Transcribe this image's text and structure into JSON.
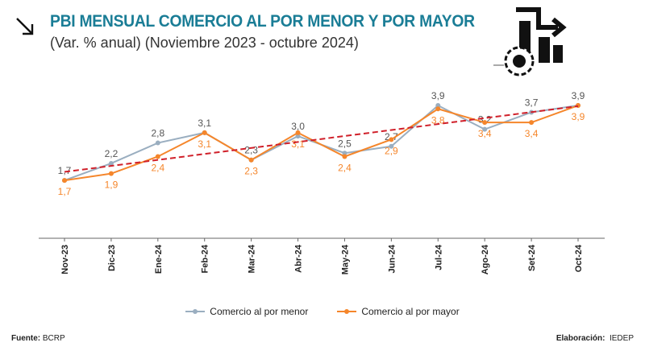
{
  "header": {
    "title": "PBI MENSUAL COMERCIO AL POR MENOR Y POR MAYOR",
    "subtitle": "(Var. % anual) (Noviembre 2023 - octubre 2024)"
  },
  "chart_data": {
    "type": "line",
    "categories": [
      "Nov-23",
      "Dic-23",
      "Ene-24",
      "Feb-24",
      "Mar-24",
      "Abr-24",
      "May-24",
      "Jun-24",
      "Jul-24",
      "Ago-24",
      "Set-24",
      "Oct-24"
    ],
    "series": [
      {
        "name": "Comercio al por menor",
        "color": "#9aaec0",
        "values": [
          1.7,
          2.2,
          2.8,
          3.1,
          2.3,
          3.0,
          2.5,
          2.7,
          3.9,
          3.2,
          3.7,
          3.9
        ],
        "labels": [
          "1,7",
          "2,2",
          "2,8",
          "3,1",
          "2,3",
          "3,0",
          "2,5",
          "2,7",
          "3,9",
          "3,2",
          "3,7",
          "3,9"
        ]
      },
      {
        "name": "Comercio al por mayor",
        "color": "#f5862b",
        "values": [
          1.7,
          1.9,
          2.4,
          3.1,
          2.3,
          3.1,
          2.4,
          2.9,
          3.8,
          3.4,
          3.4,
          3.9
        ],
        "labels": [
          "1,7",
          "1,9",
          "2,4",
          "3,1",
          "2,3",
          "3,1",
          "2,4",
          "2,9",
          "3,8",
          "3,4",
          "3,4",
          "3,9"
        ]
      }
    ],
    "trendline": {
      "color": "#d0202a",
      "style": "dashed",
      "start": 1.95,
      "end": 3.88
    },
    "ylim": [
      0,
      4.5
    ],
    "grid": false,
    "legend": "bottom"
  },
  "footer": {
    "source_label": "Fuente:",
    "source": "BCRP",
    "credit_label": "Elaboración:",
    "credit": "IEDEP"
  }
}
